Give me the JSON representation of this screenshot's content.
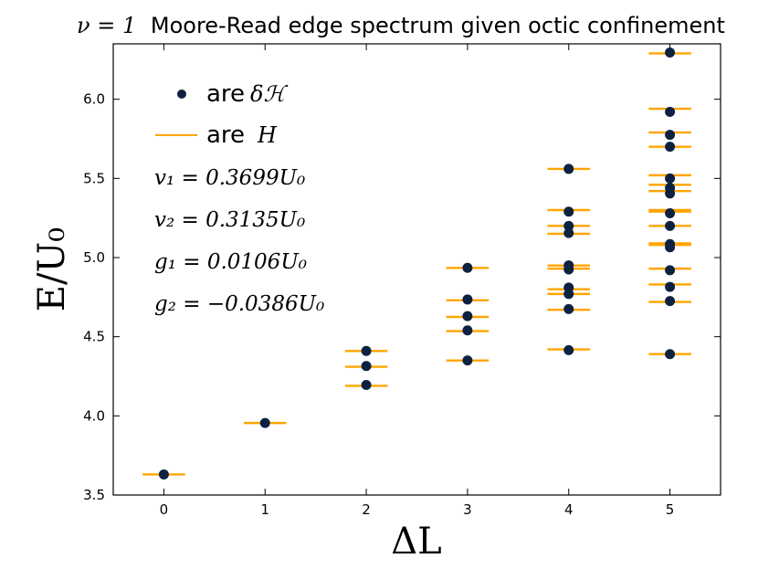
{
  "chart_data": {
    "type": "scatter",
    "title": "ν = 1 Moore-Read edge spectrum given octic confinement",
    "title_prefix": "ν = 1",
    "title_text": "Moore-Read edge spectrum given octic confinement",
    "xlabel": "ΔL",
    "ylabel": "E/U₀",
    "xlim": [
      -0.5,
      5.5
    ],
    "ylim": [
      3.5,
      6.35
    ],
    "x_ticks": [
      "0",
      "1",
      "2",
      "3",
      "4",
      "5"
    ],
    "y_ticks": [
      "3.5",
      "4.0",
      "4.5",
      "5.0",
      "5.5",
      "6.0"
    ],
    "legend": [
      {
        "marker": "dot",
        "prefix": "are",
        "symbol": "δℋ",
        "color": "#0d2240"
      },
      {
        "marker": "line",
        "prefix": "are",
        "symbol": "H",
        "color": "#ffa500"
      }
    ],
    "annotations": [
      "v₁ = 0.3699U₀",
      "v₂ = 0.3135U₀",
      "g₁ = 0.0106U₀",
      "g₂ = −0.0386U₀"
    ],
    "series": [
      {
        "name": "δℋ",
        "color": "#0d2240",
        "points": [
          [
            0,
            3.63
          ],
          [
            1,
            3.955
          ],
          [
            2,
            4.195
          ],
          [
            2,
            4.315
          ],
          [
            2,
            4.41
          ],
          [
            3,
            4.35
          ],
          [
            3,
            4.54
          ],
          [
            3,
            4.63
          ],
          [
            3,
            4.735
          ],
          [
            3,
            4.935
          ],
          [
            4,
            4.415
          ],
          [
            4,
            4.675
          ],
          [
            4,
            4.77
          ],
          [
            4,
            4.81
          ],
          [
            4,
            4.925
          ],
          [
            4,
            4.95
          ],
          [
            4,
            5.155
          ],
          [
            4,
            5.2
          ],
          [
            4,
            5.29
          ],
          [
            4,
            5.56
          ],
          [
            5,
            4.39
          ],
          [
            5,
            4.725
          ],
          [
            5,
            4.815
          ],
          [
            5,
            4.92
          ],
          [
            5,
            5.065
          ],
          [
            5,
            5.085
          ],
          [
            5,
            5.2
          ],
          [
            5,
            5.28
          ],
          [
            5,
            5.405
          ],
          [
            5,
            5.44
          ],
          [
            5,
            5.5
          ],
          [
            5,
            5.7
          ],
          [
            5,
            5.775
          ],
          [
            5,
            5.92
          ],
          [
            5,
            6.295
          ]
        ]
      },
      {
        "name": "H",
        "color": "#ffa500",
        "points": [
          [
            0,
            3.63
          ],
          [
            1,
            3.955
          ],
          [
            2,
            4.19
          ],
          [
            2,
            4.31
          ],
          [
            2,
            4.41
          ],
          [
            3,
            4.35
          ],
          [
            3,
            4.535
          ],
          [
            3,
            4.625
          ],
          [
            3,
            4.73
          ],
          [
            3,
            4.935
          ],
          [
            4,
            4.42
          ],
          [
            4,
            4.67
          ],
          [
            4,
            4.77
          ],
          [
            4,
            4.8
          ],
          [
            4,
            4.93
          ],
          [
            4,
            4.95
          ],
          [
            4,
            5.15
          ],
          [
            4,
            5.2
          ],
          [
            4,
            5.3
          ],
          [
            4,
            5.56
          ],
          [
            5,
            4.39
          ],
          [
            5,
            4.72
          ],
          [
            5,
            4.83
          ],
          [
            5,
            4.93
          ],
          [
            5,
            5.08
          ],
          [
            5,
            5.09
          ],
          [
            5,
            5.2
          ],
          [
            5,
            5.29
          ],
          [
            5,
            5.3
          ],
          [
            5,
            5.42
          ],
          [
            5,
            5.46
          ],
          [
            5,
            5.52
          ],
          [
            5,
            5.7
          ],
          [
            5,
            5.79
          ],
          [
            5,
            5.94
          ],
          [
            5,
            6.29
          ]
        ]
      }
    ]
  }
}
